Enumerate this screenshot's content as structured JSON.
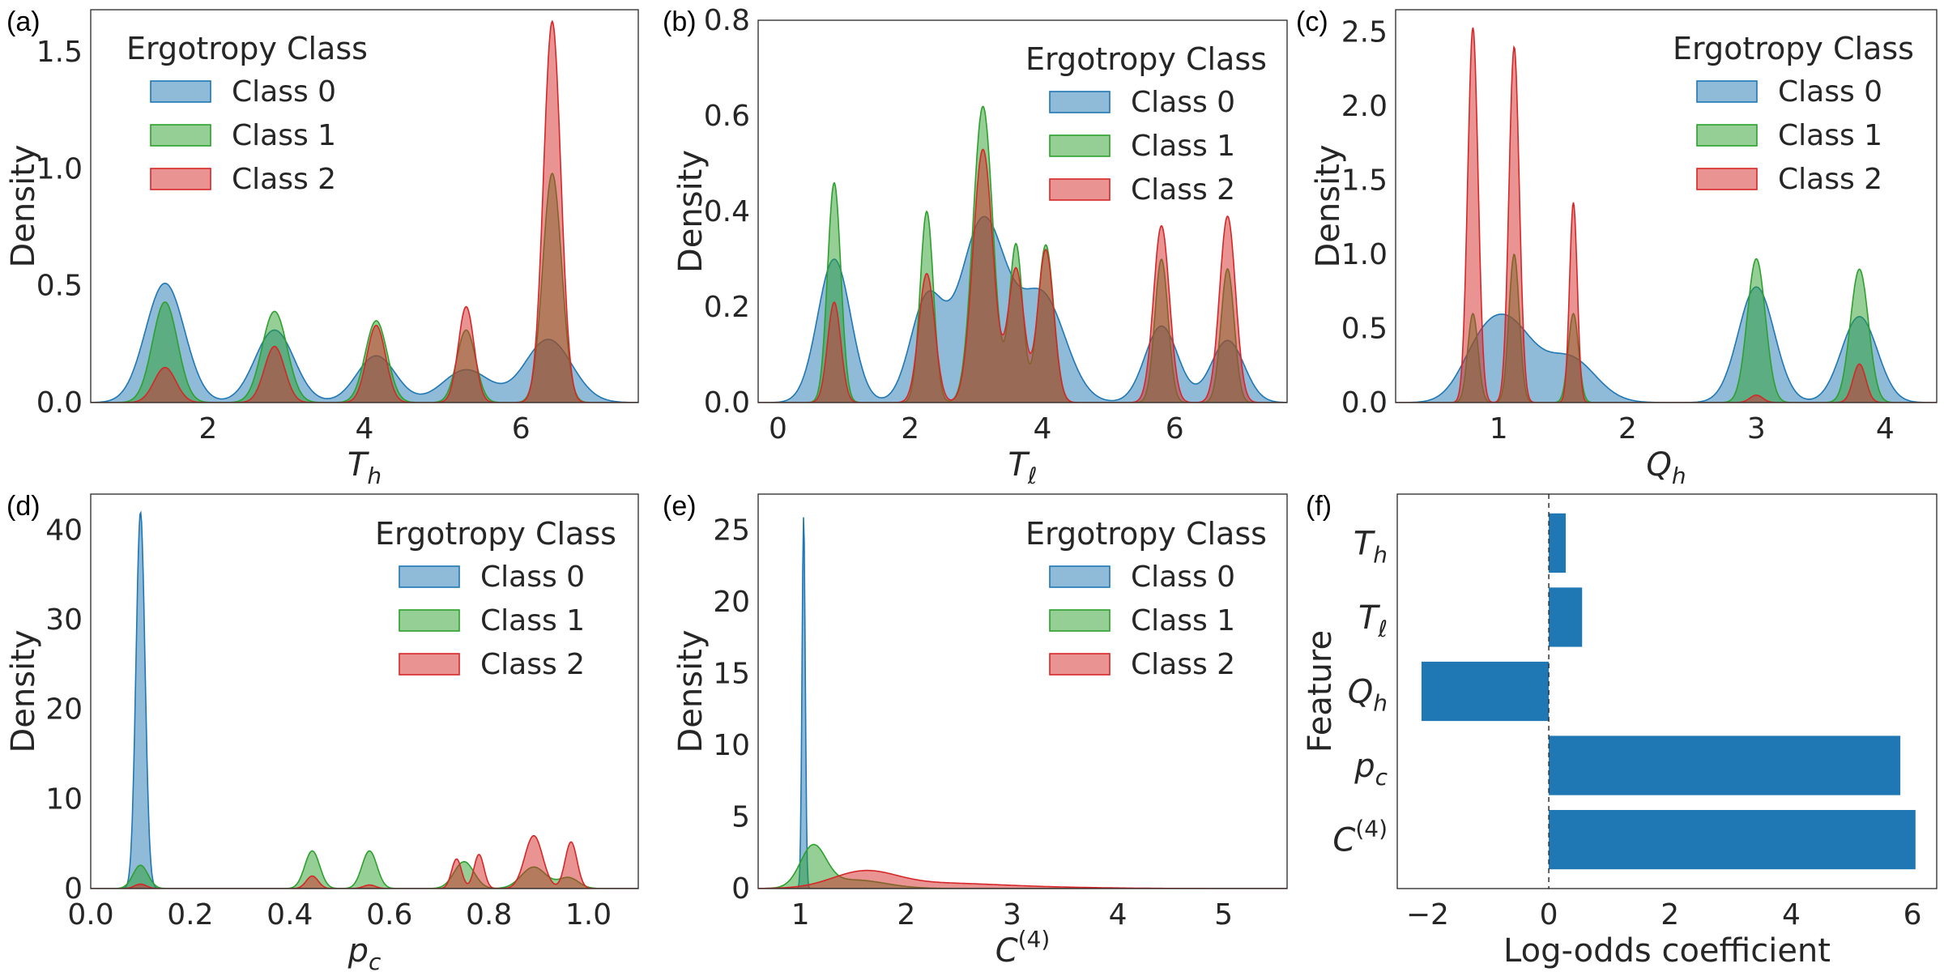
{
  "colors": {
    "class0": "#1f77b4",
    "class1": "#2ca02c",
    "class2": "#d62728",
    "bar": "#1f77b4"
  },
  "chart_data": [
    {
      "id": "a",
      "panel_label": "(a)",
      "type": "area",
      "title": "",
      "xlabel": "T_h",
      "xlabel_math": {
        "base": "T",
        "sub": "h",
        "sup": ""
      },
      "ylabel": "Density",
      "xlim": [
        0.5,
        7.5
      ],
      "ylim": [
        0,
        1.68
      ],
      "xticks": [
        2,
        4,
        6
      ],
      "xtick_labels": [
        "2",
        "4",
        "6"
      ],
      "yticks": [
        0,
        0.5,
        1.0,
        1.5
      ],
      "ytick_labels": [
        "0.0",
        "0.5",
        "1.0",
        "1.5"
      ],
      "legend": {
        "title": "Ergotropy Class",
        "position": "top-left"
      },
      "series": [
        {
          "name": "Class 0",
          "color_key": "class0",
          "peaks": [
            {
              "mu": 1.45,
              "sigma": 0.25,
              "height": 0.51
            },
            {
              "mu": 2.85,
              "sigma": 0.25,
              "height": 0.31
            },
            {
              "mu": 4.15,
              "sigma": 0.25,
              "height": 0.2
            },
            {
              "mu": 5.3,
              "sigma": 0.3,
              "height": 0.14
            },
            {
              "mu": 6.35,
              "sigma": 0.3,
              "height": 0.27
            }
          ]
        },
        {
          "name": "Class 1",
          "color_key": "class1",
          "peaks": [
            {
              "mu": 1.45,
              "sigma": 0.16,
              "height": 0.43
            },
            {
              "mu": 2.85,
              "sigma": 0.16,
              "height": 0.39
            },
            {
              "mu": 4.15,
              "sigma": 0.14,
              "height": 0.35
            },
            {
              "mu": 5.3,
              "sigma": 0.12,
              "height": 0.31
            },
            {
              "mu": 6.4,
              "sigma": 0.12,
              "height": 0.98
            }
          ]
        },
        {
          "name": "Class 2",
          "color_key": "class2",
          "peaks": [
            {
              "mu": 1.45,
              "sigma": 0.14,
              "height": 0.15
            },
            {
              "mu": 2.85,
              "sigma": 0.13,
              "height": 0.24
            },
            {
              "mu": 4.15,
              "sigma": 0.12,
              "height": 0.33
            },
            {
              "mu": 5.3,
              "sigma": 0.1,
              "height": 0.41
            },
            {
              "mu": 6.4,
              "sigma": 0.11,
              "height": 1.63
            }
          ]
        }
      ]
    },
    {
      "id": "b",
      "panel_label": "(b)",
      "type": "area",
      "title": "",
      "xlabel": "T_ℓ",
      "xlabel_math": {
        "base": "T",
        "sub": "ℓ",
        "sup": ""
      },
      "ylabel": "Density",
      "xlim": [
        -0.3,
        7.7
      ],
      "ylim": [
        0,
        0.8
      ],
      "xticks": [
        0,
        2,
        4,
        6
      ],
      "xtick_labels": [
        "0",
        "2",
        "4",
        "6"
      ],
      "yticks": [
        0,
        0.2,
        0.4,
        0.6,
        0.8
      ],
      "ytick_labels": [
        "0.0",
        "0.2",
        "0.4",
        "0.6",
        "0.8"
      ],
      "legend": {
        "title": "Ergotropy Class",
        "position": "top-right"
      },
      "series": [
        {
          "name": "Class 0",
          "color_key": "class0",
          "peaks": [
            {
              "mu": 0.85,
              "sigma": 0.25,
              "height": 0.3
            },
            {
              "mu": 2.25,
              "sigma": 0.25,
              "height": 0.21
            },
            {
              "mu": 3.1,
              "sigma": 0.35,
              "height": 0.38
            },
            {
              "mu": 4.0,
              "sigma": 0.35,
              "height": 0.22
            },
            {
              "mu": 5.8,
              "sigma": 0.25,
              "height": 0.16
            },
            {
              "mu": 6.8,
              "sigma": 0.25,
              "height": 0.13
            }
          ]
        },
        {
          "name": "Class 1",
          "color_key": "class1",
          "peaks": [
            {
              "mu": 0.85,
              "sigma": 0.1,
              "height": 0.46
            },
            {
              "mu": 2.25,
              "sigma": 0.1,
              "height": 0.4
            },
            {
              "mu": 3.1,
              "sigma": 0.15,
              "height": 0.62
            },
            {
              "mu": 3.6,
              "sigma": 0.1,
              "height": 0.33
            },
            {
              "mu": 4.05,
              "sigma": 0.12,
              "height": 0.33
            },
            {
              "mu": 5.8,
              "sigma": 0.1,
              "height": 0.3
            },
            {
              "mu": 6.8,
              "sigma": 0.1,
              "height": 0.28
            }
          ]
        },
        {
          "name": "Class 2",
          "color_key": "class2",
          "peaks": [
            {
              "mu": 0.85,
              "sigma": 0.1,
              "height": 0.21
            },
            {
              "mu": 2.25,
              "sigma": 0.12,
              "height": 0.27
            },
            {
              "mu": 3.1,
              "sigma": 0.15,
              "height": 0.53
            },
            {
              "mu": 3.6,
              "sigma": 0.12,
              "height": 0.28
            },
            {
              "mu": 4.05,
              "sigma": 0.12,
              "height": 0.32
            },
            {
              "mu": 5.8,
              "sigma": 0.12,
              "height": 0.37
            },
            {
              "mu": 6.8,
              "sigma": 0.12,
              "height": 0.39
            }
          ]
        }
      ]
    },
    {
      "id": "c",
      "panel_label": "(c)",
      "type": "area",
      "title": "",
      "xlabel": "Q_h",
      "xlabel_math": {
        "base": "Q",
        "sub": "h",
        "sup": ""
      },
      "ylabel": "Density",
      "xlim": [
        0.2,
        4.4
      ],
      "ylim": [
        0,
        2.65
      ],
      "xticks": [
        1,
        2,
        3,
        4
      ],
      "xtick_labels": [
        "1",
        "2",
        "3",
        "4"
      ],
      "yticks": [
        0,
        0.5,
        1.0,
        1.5,
        2.0,
        2.5
      ],
      "ytick_labels": [
        "0.0",
        "0.5",
        "1.0",
        "1.5",
        "2.0",
        "2.5"
      ],
      "legend": {
        "title": "Ergotropy Class",
        "position": "top-right"
      },
      "series": [
        {
          "name": "Class 0",
          "color_key": "class0",
          "peaks": [
            {
              "mu": 0.85,
              "sigma": 0.16,
              "height": 0.3
            },
            {
              "mu": 1.1,
              "sigma": 0.18,
              "height": 0.46
            },
            {
              "mu": 1.55,
              "sigma": 0.2,
              "height": 0.3
            },
            {
              "mu": 3.0,
              "sigma": 0.14,
              "height": 0.78
            },
            {
              "mu": 3.8,
              "sigma": 0.14,
              "height": 0.58
            }
          ]
        },
        {
          "name": "Class 1",
          "color_key": "class1",
          "peaks": [
            {
              "mu": 0.8,
              "sigma": 0.04,
              "height": 0.6
            },
            {
              "mu": 1.12,
              "sigma": 0.04,
              "height": 1.0
            },
            {
              "mu": 1.58,
              "sigma": 0.04,
              "height": 0.6
            },
            {
              "mu": 3.0,
              "sigma": 0.07,
              "height": 0.97
            },
            {
              "mu": 3.8,
              "sigma": 0.07,
              "height": 0.9
            }
          ]
        },
        {
          "name": "Class 2",
          "color_key": "class2",
          "peaks": [
            {
              "mu": 0.8,
              "sigma": 0.04,
              "height": 2.53
            },
            {
              "mu": 1.12,
              "sigma": 0.04,
              "height": 2.4
            },
            {
              "mu": 1.58,
              "sigma": 0.03,
              "height": 1.35
            },
            {
              "mu": 3.0,
              "sigma": 0.05,
              "height": 0.05
            },
            {
              "mu": 3.8,
              "sigma": 0.05,
              "height": 0.26
            }
          ]
        }
      ]
    },
    {
      "id": "d",
      "panel_label": "(d)",
      "type": "area",
      "title": "",
      "xlabel": "p_c",
      "xlabel_math": {
        "base": "p",
        "sub": "c",
        "sup": ""
      },
      "ylabel": "Density",
      "xlim": [
        0.0,
        1.1
      ],
      "ylim": [
        0,
        44
      ],
      "xticks": [
        0.0,
        0.2,
        0.4,
        0.6,
        0.8,
        1.0
      ],
      "xtick_labels": [
        "0.0",
        "0.2",
        "0.4",
        "0.6",
        "0.8",
        "1.0"
      ],
      "yticks": [
        0,
        10,
        20,
        30,
        40
      ],
      "ytick_labels": [
        "0",
        "10",
        "20",
        "30",
        "40"
      ],
      "legend": {
        "title": "Ergotropy Class",
        "position": "top-right"
      },
      "series": [
        {
          "name": "Class 0",
          "color_key": "class0",
          "peaks": [
            {
              "mu": 0.1,
              "sigma": 0.009,
              "height": 42
            }
          ]
        },
        {
          "name": "Class 1",
          "color_key": "class1",
          "peaks": [
            {
              "mu": 0.1,
              "sigma": 0.015,
              "height": 2.6
            },
            {
              "mu": 0.445,
              "sigma": 0.015,
              "height": 4.2
            },
            {
              "mu": 0.56,
              "sigma": 0.015,
              "height": 4.2
            },
            {
              "mu": 0.75,
              "sigma": 0.02,
              "height": 3.0
            },
            {
              "mu": 0.89,
              "sigma": 0.025,
              "height": 2.4
            },
            {
              "mu": 0.96,
              "sigma": 0.02,
              "height": 1.2
            }
          ]
        },
        {
          "name": "Class 2",
          "color_key": "class2",
          "peaks": [
            {
              "mu": 0.1,
              "sigma": 0.012,
              "height": 0.5
            },
            {
              "mu": 0.445,
              "sigma": 0.012,
              "height": 1.4
            },
            {
              "mu": 0.56,
              "sigma": 0.012,
              "height": 0.4
            },
            {
              "mu": 0.735,
              "sigma": 0.01,
              "height": 3.3
            },
            {
              "mu": 0.78,
              "sigma": 0.01,
              "height": 3.8
            },
            {
              "mu": 0.89,
              "sigma": 0.018,
              "height": 5.9
            },
            {
              "mu": 0.965,
              "sigma": 0.012,
              "height": 5.2
            }
          ]
        }
      ]
    },
    {
      "id": "e",
      "panel_label": "(e)",
      "type": "area",
      "title": "",
      "xlabel": "C^(4)",
      "xlabel_math": {
        "base": "C",
        "sub": "",
        "sup": "(4)"
      },
      "ylabel": "Density",
      "xlim": [
        0.6,
        5.6
      ],
      "ylim": [
        0,
        27.5
      ],
      "xticks": [
        1,
        2,
        3,
        4,
        5
      ],
      "xtick_labels": [
        "1",
        "2",
        "3",
        "4",
        "5"
      ],
      "yticks": [
        0,
        5,
        10,
        15,
        20,
        25
      ],
      "ytick_labels": [
        "0",
        "5",
        "10",
        "15",
        "20",
        "25"
      ],
      "legend": {
        "title": "Ergotropy Class",
        "position": "top-right"
      },
      "series": [
        {
          "name": "Class 0",
          "color_key": "class0",
          "peaks": [
            {
              "mu": 1.03,
              "sigma": 0.015,
              "height": 26
            }
          ]
        },
        {
          "name": "Class 1",
          "color_key": "class1",
          "peaks": [
            {
              "mu": 1.12,
              "sigma": 0.12,
              "height": 2.8
            },
            {
              "mu": 1.5,
              "sigma": 0.3,
              "height": 0.6
            }
          ]
        },
        {
          "name": "Class 2",
          "color_key": "class2",
          "peaks": [
            {
              "mu": 1.6,
              "sigma": 0.3,
              "height": 1.1
            },
            {
              "mu": 2.3,
              "sigma": 0.55,
              "height": 0.35
            },
            {
              "mu": 3.3,
              "sigma": 0.6,
              "height": 0.08
            }
          ]
        }
      ]
    },
    {
      "id": "f",
      "panel_label": "(f)",
      "type": "bar",
      "orientation": "horizontal",
      "title": "",
      "xlabel": "Log-odds coefficient",
      "ylabel": "Feature",
      "xlim": [
        -2.5,
        6.4
      ],
      "xticks": [
        -2,
        0,
        2,
        4,
        6
      ],
      "xtick_labels": [
        "−2",
        "0",
        "2",
        "4",
        "6"
      ],
      "categories": [
        "T_h",
        "T_ℓ",
        "Q_h",
        "p_c",
        "C^(4)"
      ],
      "category_math": [
        {
          "base": "T",
          "sub": "h",
          "sup": ""
        },
        {
          "base": "T",
          "sub": "ℓ",
          "sup": ""
        },
        {
          "base": "Q",
          "sub": "h",
          "sup": ""
        },
        {
          "base": "p",
          "sub": "c",
          "sup": ""
        },
        {
          "base": "C",
          "sub": "",
          "sup": "(4)"
        }
      ],
      "values": [
        0.28,
        0.55,
        -2.1,
        5.8,
        6.05
      ],
      "zero_line": "dashed"
    }
  ]
}
